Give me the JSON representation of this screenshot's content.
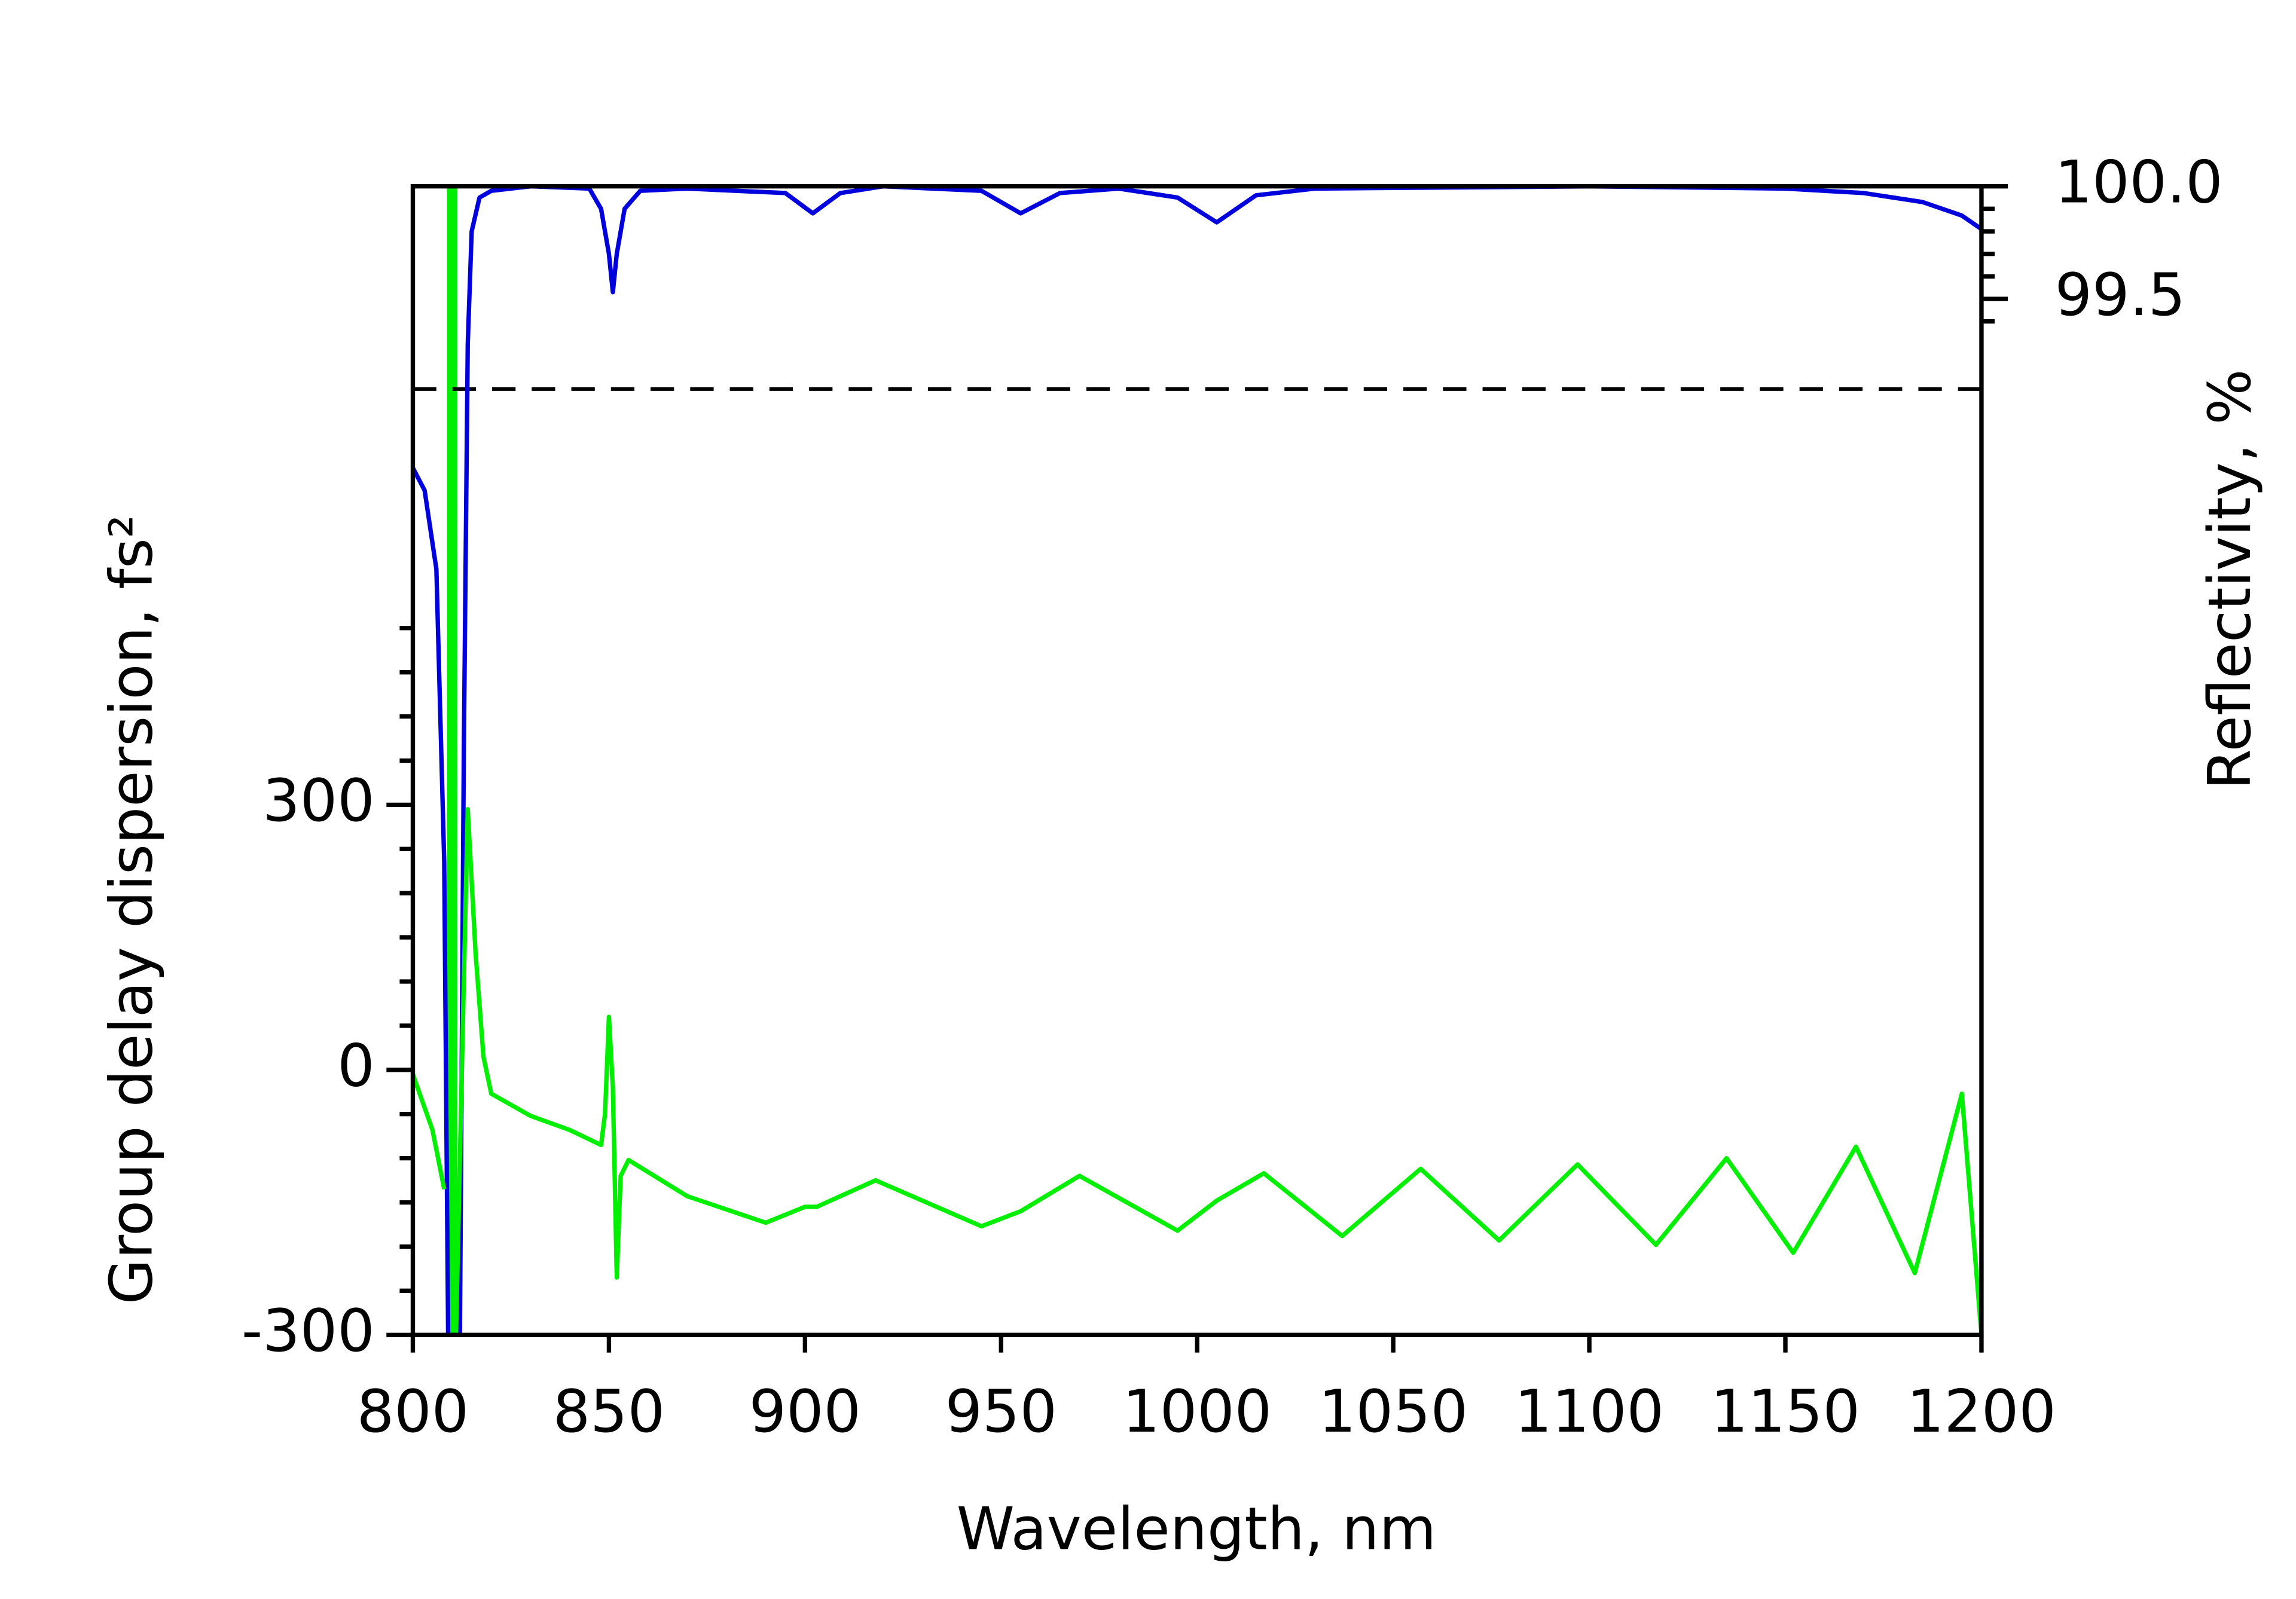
{
  "chart_data": {
    "type": "line",
    "x_label": "Wavelength, nm",
    "y_label": "Group delay dispersion, fs²",
    "y2_label": "Reflectivity, %",
    "xlim": [
      800,
      1200
    ],
    "xticks": [
      800,
      850,
      900,
      950,
      1000,
      1050,
      1100,
      1150,
      1200
    ],
    "ylim": [
      -300,
      1000
    ],
    "yticks": [
      -300,
      0,
      300
    ],
    "y_minor_ticks": [
      -250,
      -200,
      -150,
      -100,
      -50,
      50,
      100,
      150,
      200,
      250,
      350,
      400,
      450,
      500
    ],
    "y2lim": [
      94.9,
      100.0
    ],
    "y2ticks": [
      {
        "value": 100,
        "label": "100.0"
      },
      99.5
    ],
    "y2_minor_ticks": [
      99.9,
      99.8,
      99.7,
      99.6,
      99.4
    ],
    "reference_lines": [
      {
        "axis": "y2",
        "value": 99.1,
        "style": "dashed",
        "color": "#000000"
      }
    ],
    "marker_lines": [
      {
        "x": 810,
        "color": "#00ee00"
      }
    ],
    "series": [
      {
        "color": "#0000dd",
        "axis": "y2",
        "x": [
          800,
          803,
          806,
          808,
          809,
          812,
          813,
          814,
          815,
          817,
          820,
          830,
          845,
          848,
          850,
          851,
          852,
          854,
          858,
          870,
          895,
          902,
          909,
          920,
          945,
          955,
          965,
          980,
          995,
          1005,
          1015,
          1030,
          1100,
          1150,
          1170,
          1185,
          1195,
          1200
        ],
        "values": [
          98.75,
          98.65,
          98.3,
          97.0,
          94.9,
          94.9,
          97.5,
          99.3,
          99.8,
          99.95,
          99.98,
          100,
          99.99,
          99.9,
          99.7,
          99.53,
          99.7,
          99.9,
          99.98,
          99.99,
          99.97,
          99.88,
          99.97,
          100,
          99.98,
          99.88,
          99.97,
          99.99,
          99.95,
          99.84,
          99.96,
          99.99,
          100,
          99.99,
          99.97,
          99.93,
          99.87,
          99.81
        ]
      },
      {
        "color": "#00ee00",
        "axis": "y",
        "x": [
          800,
          805,
          808,
          809,
          811,
          813,
          814,
          816,
          818,
          820,
          830,
          840,
          848,
          849,
          850,
          851,
          852,
          853,
          855,
          870,
          890,
          900,
          903,
          918,
          945,
          955,
          970,
          995,
          1005,
          1017,
          1037,
          1057,
          1077,
          1097,
          1117,
          1135,
          1152,
          1168,
          1183,
          1195,
          1200
        ],
        "values": [
          -5,
          -68,
          -135,
          null,
          -300,
          100,
          295,
          132,
          15,
          -27,
          -52,
          -68,
          -85,
          -50,
          60,
          -20,
          -235,
          -120,
          -102,
          -143,
          -173,
          -155,
          -155,
          -125,
          -177,
          -160,
          -120,
          -182,
          -148,
          -117,
          -188,
          -112,
          -193,
          -107,
          -198,
          -100,
          -207,
          -87,
          -230,
          -27,
          -300
        ]
      }
    ]
  }
}
